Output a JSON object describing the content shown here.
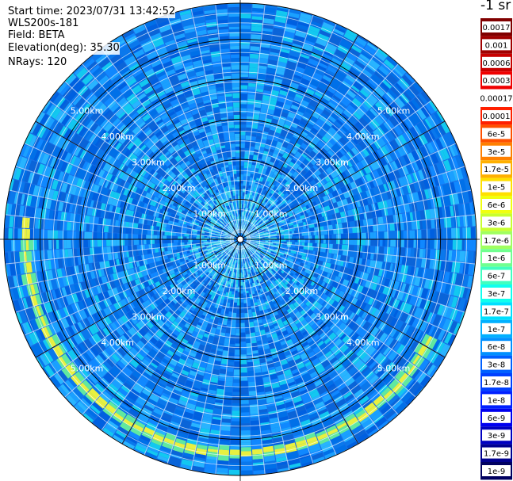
{
  "header": {
    "start_time": "Start time: 2023/07/31 13:42:52",
    "instrument": "WLS200s-181",
    "field": "Field: BETA",
    "elevation": "Elevation(deg): 35.30",
    "nrays": "NRays: 120"
  },
  "colorbar": {
    "unit_label": "-1 sr",
    "labels": [
      "0.0017",
      "0.001",
      "0.0006",
      "0.0003",
      "0.00017",
      "0.0001",
      "6e-5",
      "3e-5",
      "1.7e-5",
      "1e-5",
      "6e-6",
      "3e-6",
      "1.7e-6",
      "1e-6",
      "6e-7",
      "3e-7",
      "1.7e-7",
      "1e-7",
      "6e-8",
      "3e-8",
      "1.7e-8",
      "1e-8",
      "6e-9",
      "3e-9",
      "1.7e-9",
      "1e-9"
    ],
    "colors": [
      "#800000",
      "#a00000",
      "#c80000",
      "#f00000",
      "#ffffff",
      "#ff2000",
      "#ff5000",
      "#ff8000",
      "#ffb000",
      "#ffe000",
      "#f0ff10",
      "#c8ff30",
      "#a0ff60",
      "#70ff90",
      "#40ffc0",
      "#10ffee",
      "#00e0ff",
      "#00b0ff",
      "#0090ff",
      "#0060ff",
      "#0040ff",
      "#0020ff",
      "#0000f0",
      "#0000c0",
      "#000090",
      "#000060"
    ]
  },
  "chart_data": {
    "type": "heatmap",
    "projection": "polar (PPI)",
    "field": "BETA",
    "nrays": 120,
    "range_ring_labels": [
      "1.00km",
      "2.00km",
      "3.00km",
      "4.00km",
      "5.00km"
    ],
    "range_rings_km": [
      1,
      2,
      3,
      4,
      5
    ],
    "max_range_km": 5.9,
    "feature_ring": {
      "range_km": 5.35,
      "azimuth_from_deg": 118,
      "azimuth_to_deg": 275,
      "level": "1e-5"
    },
    "background_level": "1e-8"
  }
}
